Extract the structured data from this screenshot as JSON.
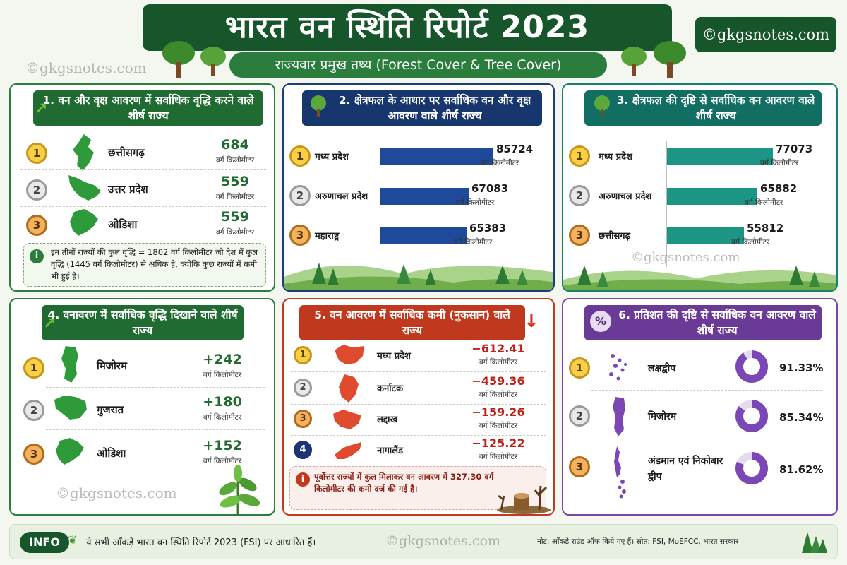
{
  "header": {
    "title": "भारत वन स्थिति रिपोर्ट 2023",
    "subtitle": "राज्यवार प्रमुख तथ्य (Forest Cover & Tree Cover)",
    "brand": "©gkgsnotes.com"
  },
  "watermark": "©gkgsnotes.com",
  "unit_label": "वर्ग किलोमीटर",
  "panel1": {
    "title": "1. वन और वृक्ष आवरण में सर्वाधिक वृद्धि करने वाले शीर्ष राज्य",
    "items": [
      {
        "rank": "1",
        "state": "छत्तीसगढ़",
        "value": "684"
      },
      {
        "rank": "2",
        "state": "उत्तर प्रदेश",
        "value": "559"
      },
      {
        "rank": "3",
        "state": "ओडिशा",
        "value": "559"
      }
    ],
    "note": "इन तीनों राज्यों की कुल वृद्धि = 1802 वर्ग किलोमीटर जो देश में कुल वृद्धि (1445 वर्ग किलोमीटर) से अधिक है, क्योंकि कुछ राज्यों में कमी भी हुई है।"
  },
  "panel2": {
    "title": "2. क्षेत्रफल के आधार पर सर्वाधिक वन और वृक्ष आवरण वाले शीर्ष राज्य",
    "items": [
      {
        "rank": "1",
        "state": "मध्य प्रदेश",
        "value": "85724",
        "num": 85724
      },
      {
        "rank": "2",
        "state": "अरुणाचल प्रदेश",
        "value": "67083",
        "num": 67083
      },
      {
        "rank": "3",
        "state": "महाराष्ट्र",
        "value": "65383",
        "num": 65383
      }
    ]
  },
  "panel3": {
    "title": "3. क्षेत्रफल की दृष्टि से सर्वाधिक वन आवरण वाले शीर्ष राज्य",
    "items": [
      {
        "rank": "1",
        "state": "मध्य प्रदेश",
        "value": "77073",
        "num": 77073
      },
      {
        "rank": "2",
        "state": "अरुणाचल प्रदेश",
        "value": "65882",
        "num": 65882
      },
      {
        "rank": "3",
        "state": "छत्तीसगढ़",
        "value": "55812",
        "num": 55812
      }
    ]
  },
  "panel4": {
    "title": "4. वनावरण में सर्वाधिक वृद्धि दिखाने वाले शीर्ष राज्य",
    "items": [
      {
        "rank": "1",
        "state": "मिजोरम",
        "value": "+242"
      },
      {
        "rank": "2",
        "state": "गुजरात",
        "value": "+180"
      },
      {
        "rank": "3",
        "state": "ओडिशा",
        "value": "+152"
      }
    ]
  },
  "panel5": {
    "title": "5. वन आवरण में सर्वाधिक कमी (नुकसान) वाले राज्य",
    "items": [
      {
        "rank": "1",
        "state": "मध्य प्रदेश",
        "value": "−612.41"
      },
      {
        "rank": "2",
        "state": "कर्नाटक",
        "value": "−459.36"
      },
      {
        "rank": "3",
        "state": "लद्दाख",
        "value": "−159.26"
      },
      {
        "rank": "4",
        "state": "नागालैंड",
        "value": "−125.22"
      }
    ],
    "note": "पूर्वोत्तर राज्यों में कुल मिलाकर वन आवरण में 327.30 वर्ग किलोमीटर की कमी दर्ज की गई है।"
  },
  "panel6": {
    "title": "6. प्रतिशत की दृष्टि से सर्वाधिक वन आवरण वाले शीर्ष राज्य",
    "icon_text": "%",
    "items": [
      {
        "rank": "1",
        "state": "लक्षद्वीप",
        "value": "91.33%",
        "pct": 91.33
      },
      {
        "rank": "2",
        "state": "मिजोरम",
        "value": "85.34%",
        "pct": 85.34
      },
      {
        "rank": "3",
        "state": "अंडमान एवं निकोबार द्वीप",
        "value": "81.62%",
        "pct": 81.62
      }
    ]
  },
  "footer": {
    "badge": "INFO",
    "text": "ये सभी आँकड़े भारत वन स्थिति रिपोर्ट 2023 (FSI) पर आधारित हैं।",
    "note": "नोट: आँकड़े राउंड ऑफ किये गए हैं। स्रोत: FSI, MoEFCC, भारत सरकार"
  },
  "colors": {
    "dark_green": "#17552b",
    "blue_bar": "#1f4a9a",
    "teal_bar": "#1d9585",
    "loss_red": "#c0391f",
    "donut_purple": "#7a47b5",
    "value_green": "#1f6b31"
  }
}
